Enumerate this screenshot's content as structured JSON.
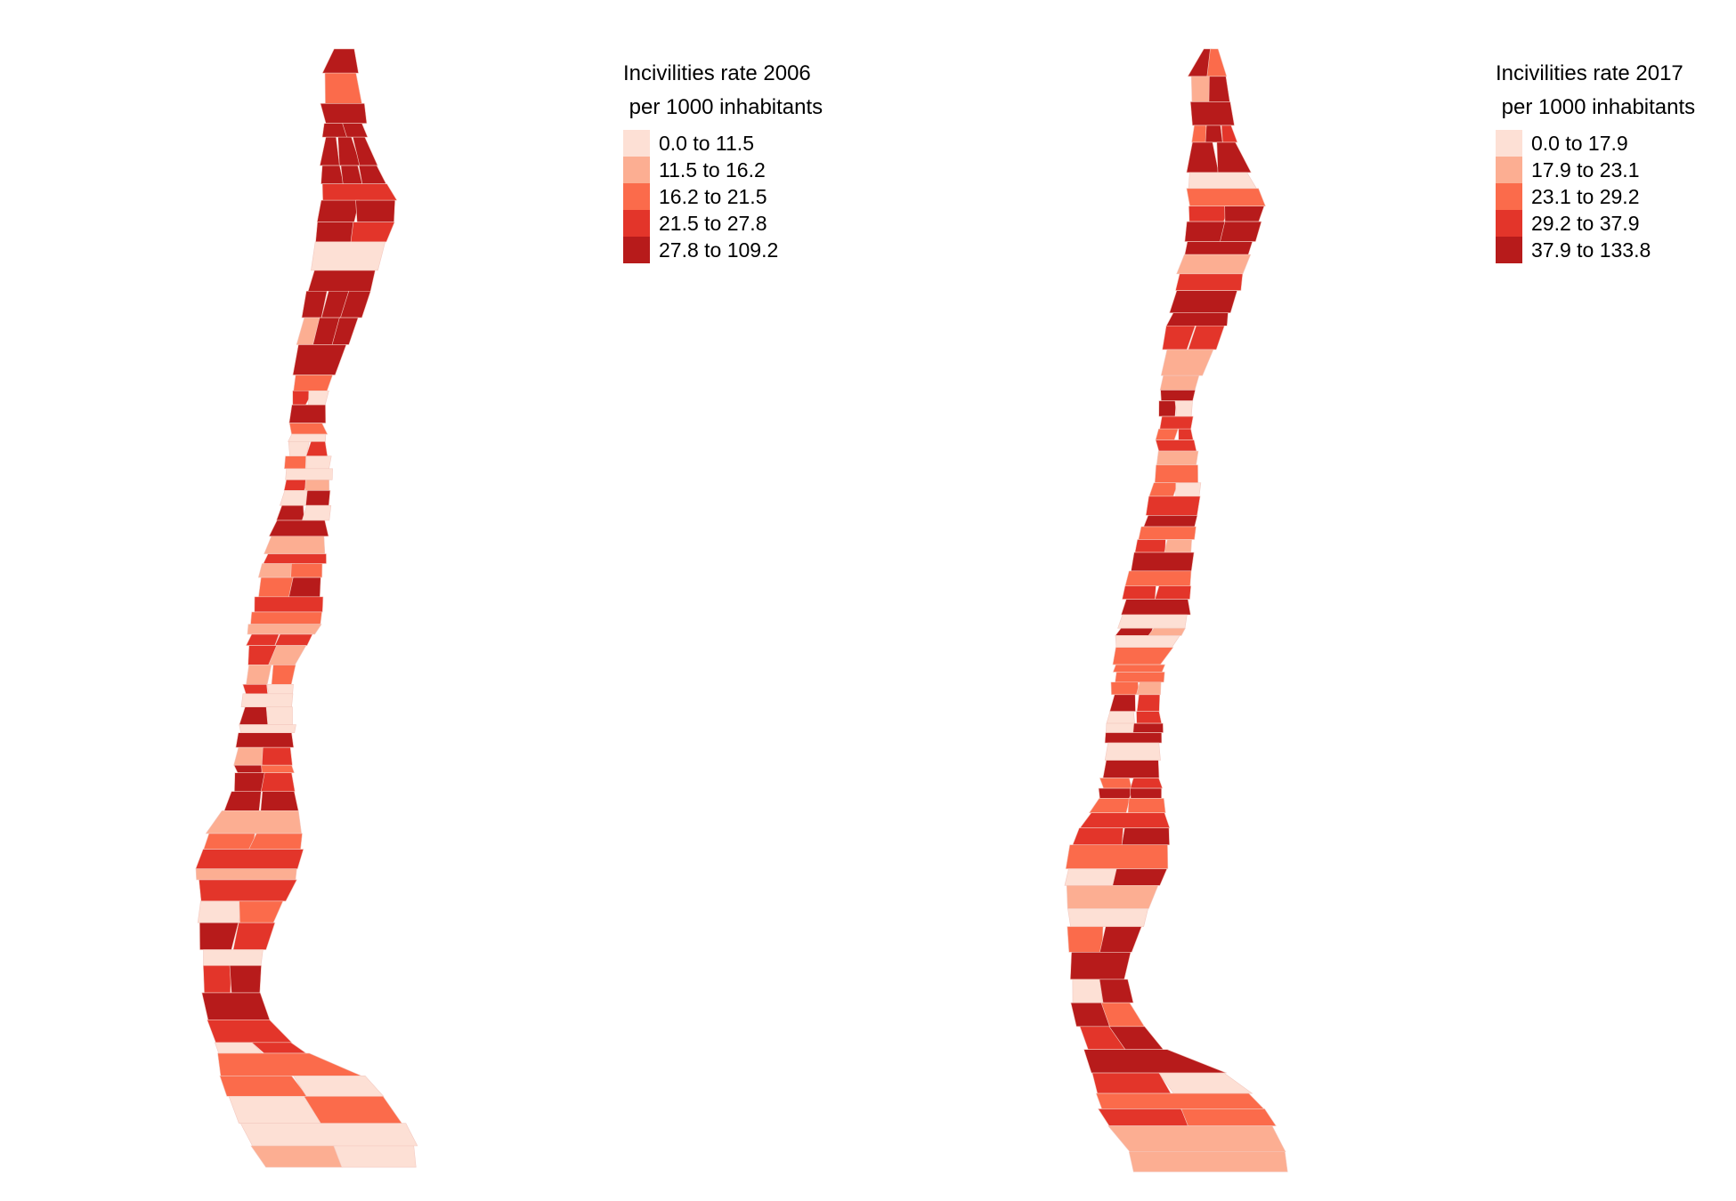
{
  "maps": [
    {
      "legend": {
        "title_line1": "Incivilities rate 2006",
        "title_line2": " per 1000 inhabitants",
        "items": [
          {
            "label": "0.0 to 11.5",
            "color": "#fde0d5"
          },
          {
            "label": "11.5 to 16.2",
            "color": "#fcae92"
          },
          {
            "label": "16.2 to 21.5",
            "color": "#fb6b4b"
          },
          {
            "label": "21.5 to 27.8",
            "color": "#e3352a"
          },
          {
            "label": "27.8 to 109.2",
            "color": "#b71b1b"
          }
        ]
      }
    },
    {
      "legend": {
        "title_line1": "Incivilities rate 2017",
        "title_line2": " per 1000 inhabitants",
        "items": [
          {
            "label": "0.0 to 17.9",
            "color": "#fde0d5"
          },
          {
            "label": "17.9 to 23.1",
            "color": "#fcae92"
          },
          {
            "label": "23.1 to 29.2",
            "color": "#fb6b4b"
          },
          {
            "label": "29.2 to 37.9",
            "color": "#e3352a"
          },
          {
            "label": "37.9 to 133.8",
            "color": "#b71b1b"
          }
        ]
      }
    }
  ]
}
